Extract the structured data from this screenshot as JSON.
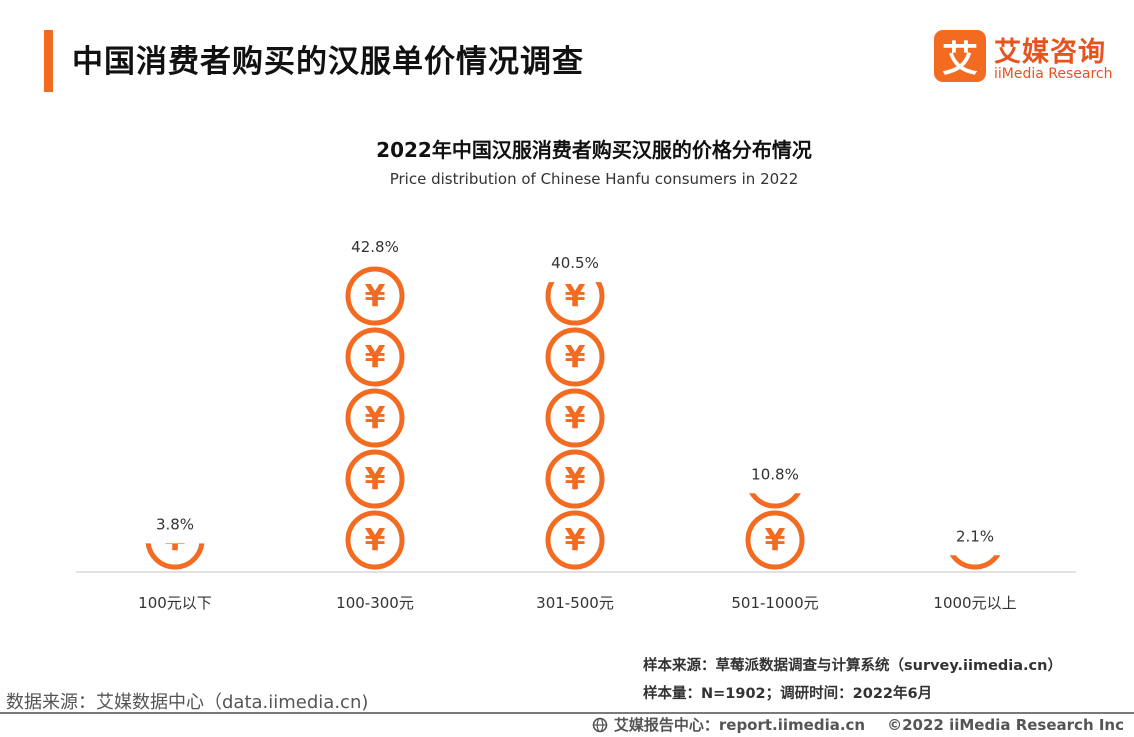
{
  "header": {
    "title": "中国消费者购买的汉服单价情况调查"
  },
  "logo": {
    "mark": "艾",
    "name_cn": "艾媒咨询",
    "name_en": "iiMedia Research"
  },
  "colors": {
    "accent": "#f26b21",
    "coin": "#f26b21",
    "axis": "#d9d9d9"
  },
  "chart_data": {
    "type": "bar",
    "style": "pictograph-coins",
    "icon": "yuan-coin-icon",
    "title": "2022年中国汉服消费者购买汉服的价格分布情况",
    "subtitle": "Price distribution of  Chinese Hanfu consumers in 2022",
    "categories": [
      "100元以下",
      "100-300元",
      "301-500元",
      "501-1000元",
      "1000元以上"
    ],
    "values": [
      3.8,
      42.8,
      40.5,
      10.8,
      2.1
    ],
    "labels": [
      "3.8%",
      "42.8%",
      "40.5%",
      "10.8%",
      "2.1%"
    ],
    "unit": "%",
    "value_per_icon": 8.56,
    "grid": false,
    "legend": "none"
  },
  "notes": {
    "sample_source": "样本来源：草莓派数据调查与计算系统（survey.iimedia.cn）",
    "sample_size": "样本量：N=1902；调研时间：2022年6月"
  },
  "footer": {
    "data_source": "数据来源：艾媒数据中心（data.iimedia.cn)",
    "report_center": "艾媒报告中心：report.iimedia.cn",
    "copyright": "©2022  iiMedia Research  Inc"
  }
}
